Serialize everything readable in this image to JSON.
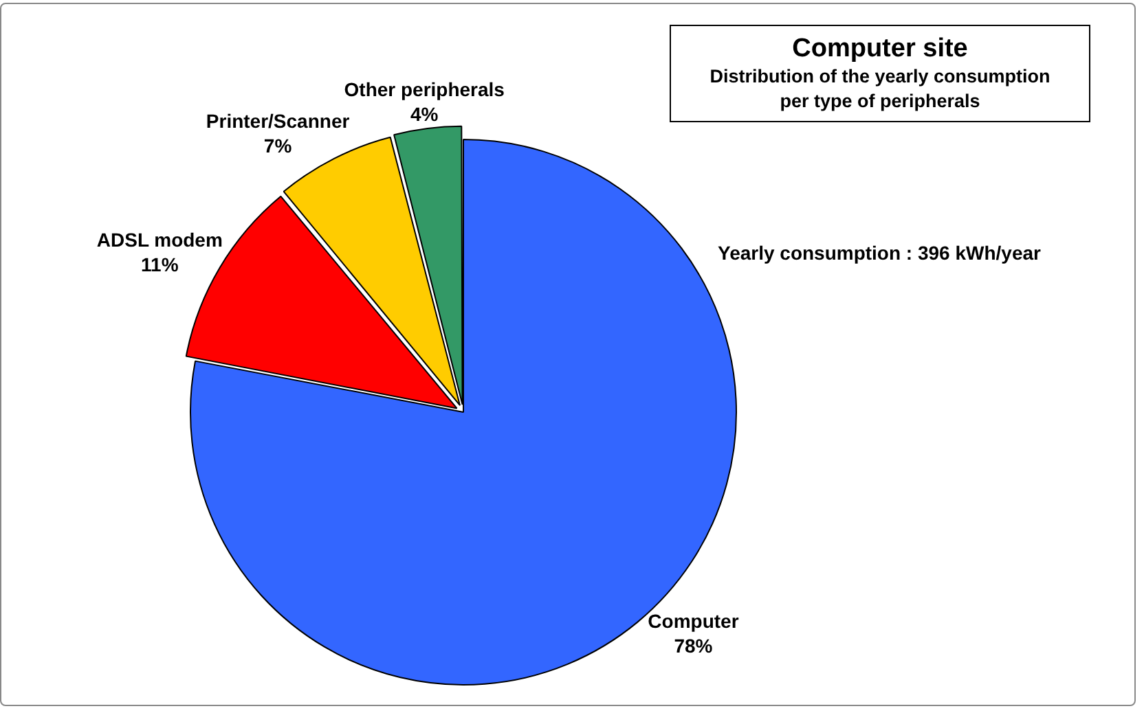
{
  "chart_data": {
    "type": "pie",
    "title": "Computer site",
    "subtitle": "Distribution of the yearly consumption\nper type of peripherals",
    "categories": [
      "Computer",
      "ADSL modem",
      "Printer/Scanner",
      "Other peripherals"
    ],
    "values": [
      78,
      11,
      7,
      4
    ],
    "colors": [
      "#3366ff",
      "#ff0000",
      "#ffcc00",
      "#339966"
    ],
    "value_labels": [
      "78%",
      "11%",
      "7%",
      "4%"
    ],
    "annotations": [
      "Yearly consumption : 396 kWh/year"
    ],
    "legend": false
  }
}
